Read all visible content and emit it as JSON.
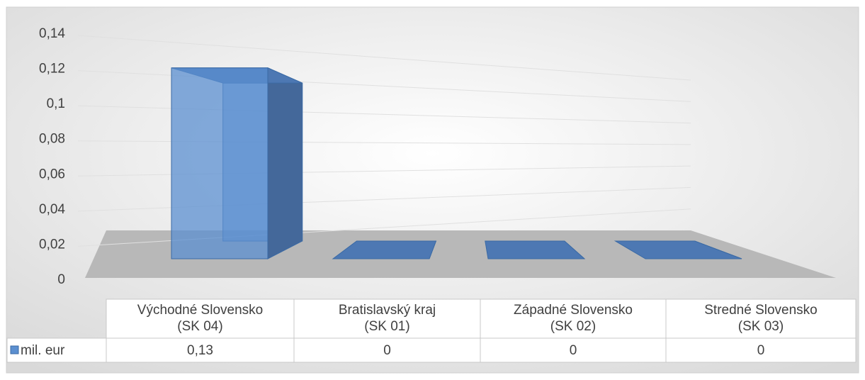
{
  "chart_data": {
    "type": "bar3d",
    "categories": [
      "Východné Slovensko\n(SK 04)",
      "Bratislavský kraj\n(SK 01)",
      "Západné Slovensko\n(SK 02)",
      "Stredné Slovensko\n(SK 03)"
    ],
    "series": [
      {
        "name": "mil. eur",
        "color": "#5b8fd0",
        "values": [
          0.13,
          0,
          0,
          0
        ],
        "value_labels": [
          "0,13",
          "0",
          "0",
          "0"
        ]
      }
    ],
    "ylim": [
      0,
      0.14
    ],
    "yticks": [
      0,
      {
        "value": 0.02,
        "label": "0,02"
      },
      {
        "value": 0.04,
        "label": "0,04"
      },
      {
        "value": 0.06,
        "label": "0,06"
      },
      {
        "value": 0.08,
        "label": "0,08"
      },
      {
        "value": 0.1,
        "label": "0,1"
      },
      {
        "value": 0.12,
        "label": "0,12"
      },
      {
        "value": 0.14,
        "label": "0,14"
      }
    ],
    "grid": true,
    "data_table": true
  }
}
